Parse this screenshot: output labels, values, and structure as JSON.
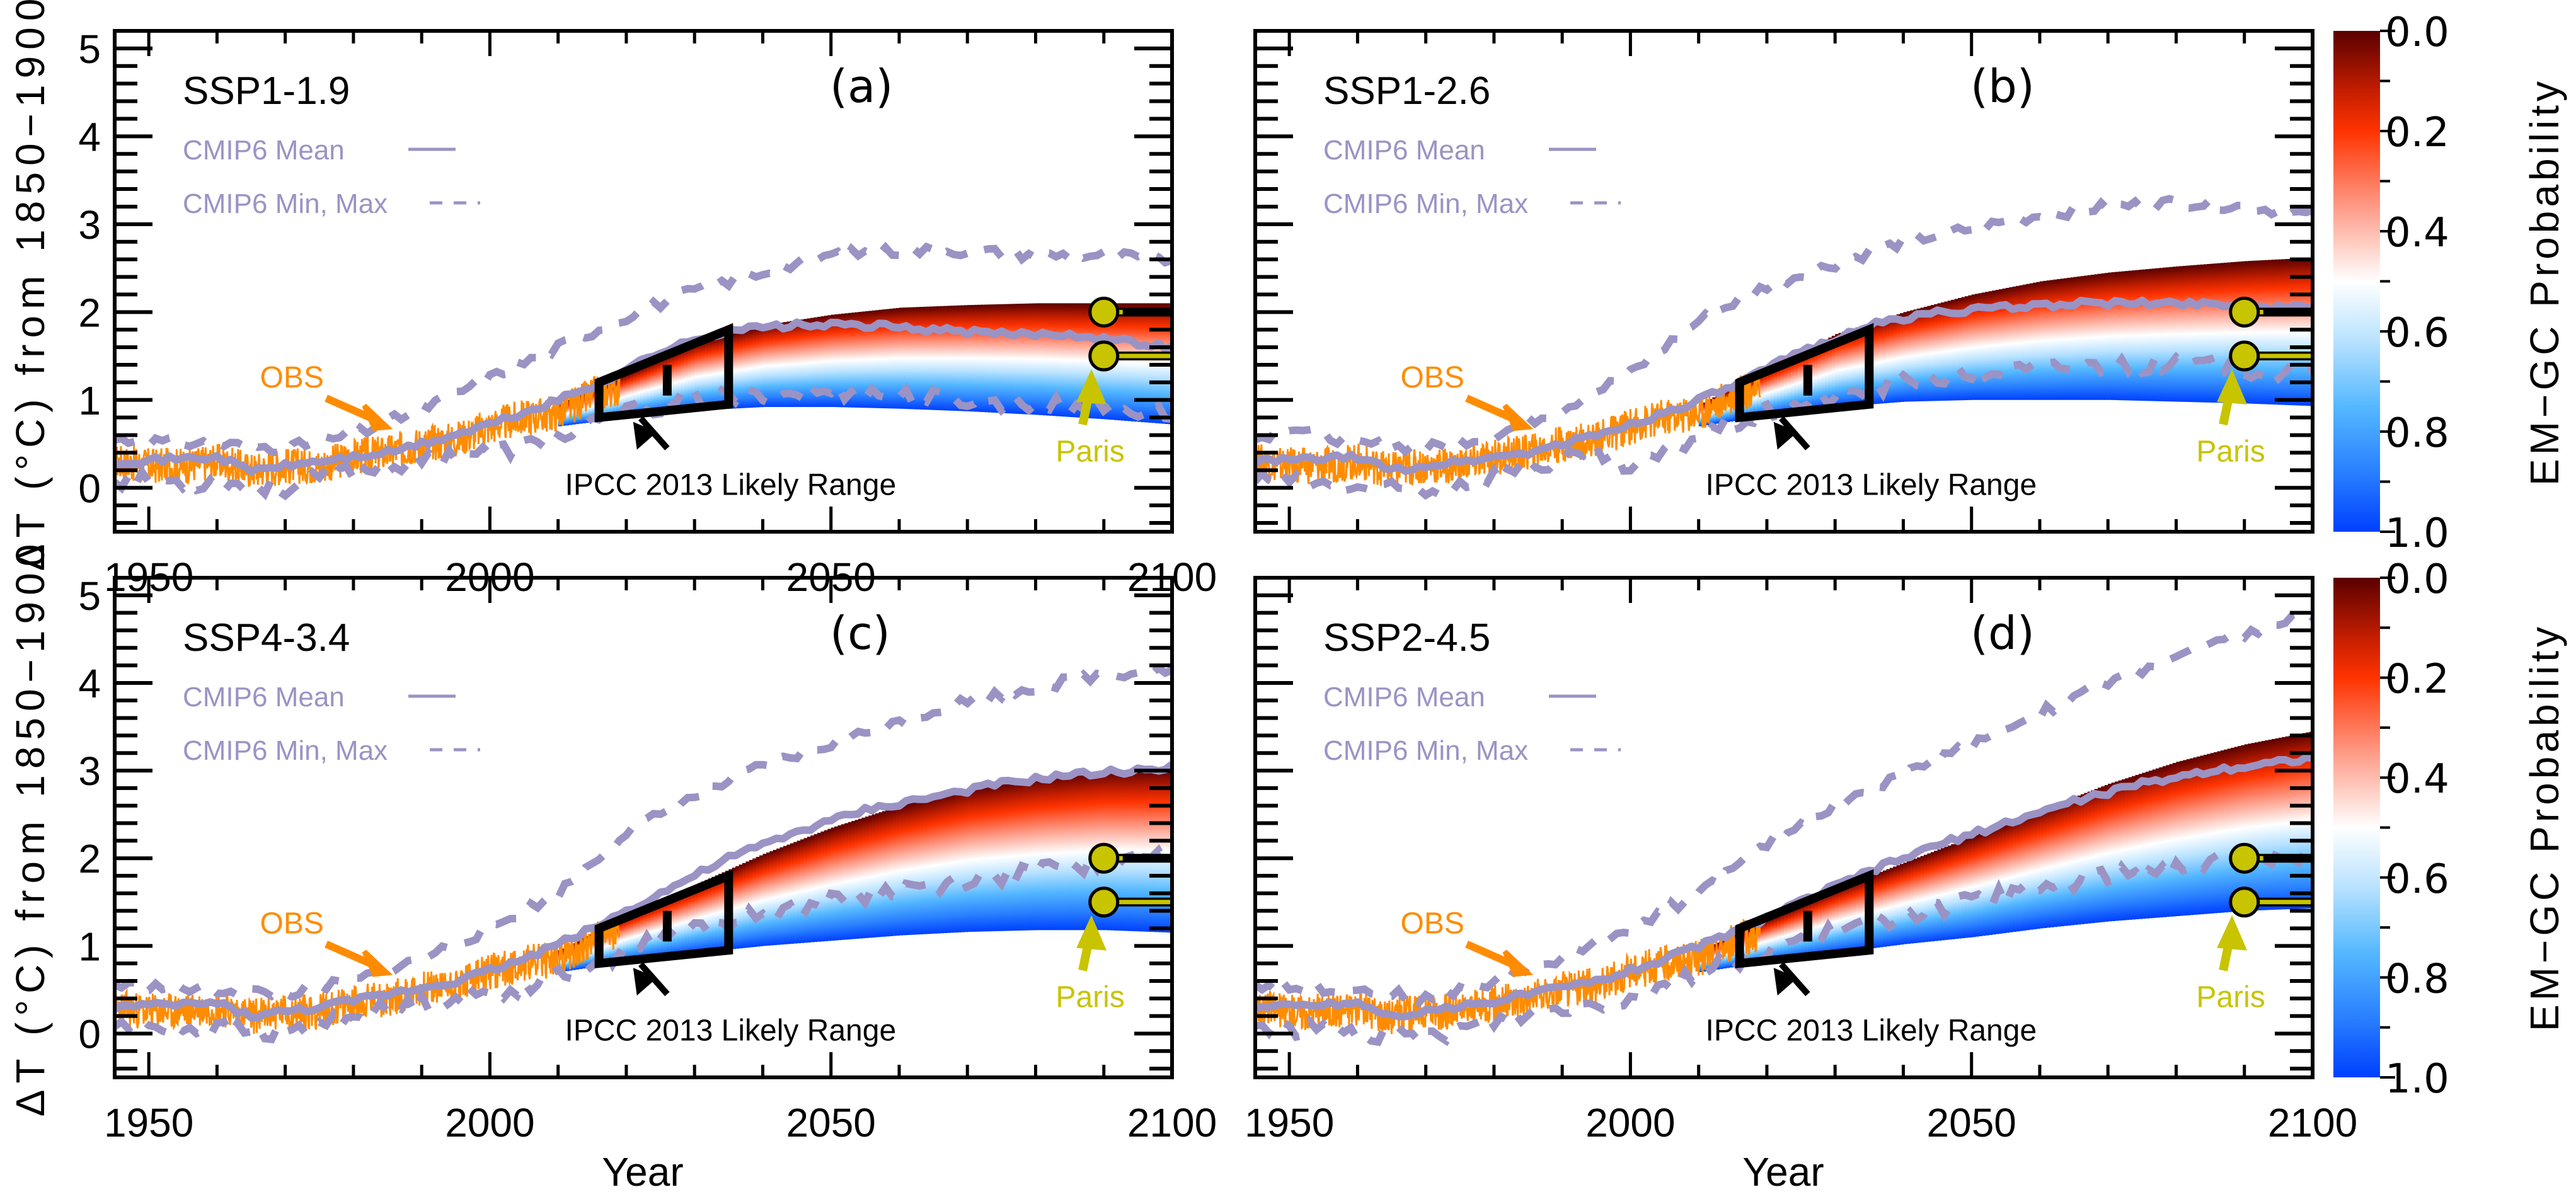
{
  "figure": {
    "y_axis_title": "ΔT (°C) from 1850−1900",
    "x_axis_title": "Year",
    "colorbar_title": "EM−GC Probability",
    "colorbar_ticks": [
      "0.0",
      "0.2",
      "0.4",
      "0.6",
      "0.8",
      "1.0"
    ]
  },
  "colors": {
    "obs": "#FF8C00",
    "cmip6": "#9B93C4",
    "paris": "#C8C400",
    "ipcc": "#000000",
    "prob_scale": [
      "#5A0000",
      "#FF3300",
      "#FFFFFF",
      "#55B8FF",
      "#0040FF"
    ]
  },
  "chart_data": [
    {
      "type": "line",
      "panel": "(a)",
      "title": "SSP1-1.9",
      "xlabel": "Year",
      "ylabel": "ΔT (°C) from 1850−1900",
      "xlim": [
        1945,
        2100
      ],
      "ylim": [
        -0.5,
        5.2
      ],
      "x_ticks": [
        1950,
        2000,
        2050,
        2100
      ],
      "y_ticks": [
        0,
        1,
        2,
        3,
        4,
        5
      ],
      "legend": [
        "CMIP6 Mean",
        "CMIP6 Min, Max"
      ],
      "annotations": [
        "OBS",
        "IPCC 2013 Likely Range",
        "Paris"
      ],
      "cmip6_mean": {
        "x": [
          1945,
          1960,
          1965,
          1975,
          1985,
          1995,
          2005,
          2015,
          2025,
          2035,
          2045,
          2055,
          2065,
          2075,
          2085,
          2095,
          2100
        ],
        "y": [
          0.3,
          0.35,
          0.2,
          0.3,
          0.4,
          0.6,
          0.85,
          1.15,
          1.55,
          1.8,
          1.85,
          1.85,
          1.8,
          1.75,
          1.75,
          1.65,
          1.6
        ]
      },
      "cmip6_max": {
        "x": [
          1945,
          1960,
          1970,
          1980,
          1990,
          2000,
          2010,
          2020,
          2030,
          2040,
          2050,
          2060,
          2070,
          2080,
          2090,
          2100
        ],
        "y": [
          0.55,
          0.5,
          0.45,
          0.6,
          0.9,
          1.25,
          1.6,
          1.95,
          2.25,
          2.45,
          2.65,
          2.7,
          2.7,
          2.65,
          2.65,
          2.6
        ]
      },
      "cmip6_min": {
        "x": [
          1945,
          1960,
          1970,
          1980,
          1990,
          1995,
          2000,
          2010,
          2020,
          2030,
          2040,
          2050,
          2060,
          2070,
          2080,
          2090,
          2100
        ],
        "y": [
          0.1,
          0.05,
          0.0,
          0.2,
          0.3,
          0.4,
          0.4,
          0.55,
          0.85,
          1.0,
          1.05,
          1.1,
          1.05,
          1.0,
          0.95,
          0.9,
          0.85
        ]
      },
      "emgc_range": {
        "x": [
          2010,
          2020,
          2030,
          2040,
          2050,
          2060,
          2070,
          2080,
          2090,
          2100
        ],
        "upper": [
          0.95,
          1.3,
          1.65,
          1.85,
          1.97,
          2.05,
          2.08,
          2.1,
          2.1,
          2.1
        ],
        "lower": [
          0.7,
          0.8,
          0.88,
          0.92,
          0.92,
          0.9,
          0.87,
          0.83,
          0.78,
          0.72
        ]
      },
      "ipcc_box": {
        "x": [
          2016,
          2035
        ],
        "left": [
          0.8,
          1.2
        ],
        "right": [
          0.95,
          1.8
        ],
        "mid_year": 2026,
        "mid_range": [
          1.05,
          1.4
        ]
      },
      "paris": {
        "year": 2090,
        "targets": [
          2.0,
          1.5
        ]
      }
    },
    {
      "type": "line",
      "panel": "(b)",
      "title": "SSP1-2.6",
      "xlabel": "",
      "ylabel": "",
      "xlim": [
        1945,
        2100
      ],
      "ylim": [
        -0.5,
        5.2
      ],
      "x_ticks": [],
      "y_ticks": [],
      "legend": [
        "CMIP6 Mean",
        "CMIP6 Min, Max"
      ],
      "annotations": [
        "OBS",
        "IPCC 2013 Likely Range",
        "Paris"
      ],
      "cmip6_mean": {
        "x": [
          1945,
          1960,
          1965,
          1975,
          1985,
          1995,
          2005,
          2015,
          2025,
          2035,
          2045,
          2055,
          2065,
          2075,
          2085,
          2095,
          2100
        ],
        "y": [
          0.3,
          0.35,
          0.2,
          0.3,
          0.4,
          0.6,
          0.85,
          1.15,
          1.55,
          1.85,
          2.0,
          2.05,
          2.1,
          2.1,
          2.1,
          2.05,
          2.05
        ]
      },
      "cmip6_max": {
        "x": [
          1945,
          1950,
          1960,
          1970,
          1980,
          1990,
          2000,
          2010,
          2020,
          2030,
          2040,
          2050,
          2060,
          2070,
          2080,
          2090,
          2100
        ],
        "y": [
          0.55,
          0.7,
          0.5,
          0.45,
          0.6,
          0.9,
          1.3,
          1.9,
          2.3,
          2.55,
          2.8,
          2.95,
          3.1,
          3.2,
          3.25,
          3.2,
          3.1
        ]
      },
      "cmip6_min": {
        "x": [
          1945,
          1960,
          1970,
          1980,
          1990,
          1995,
          2000,
          2010,
          2020,
          2030,
          2040,
          2050,
          2060,
          2070,
          2080,
          2090,
          2100
        ],
        "y": [
          0.1,
          0.0,
          -0.05,
          0.15,
          0.3,
          0.4,
          0.2,
          0.6,
          0.85,
          1.05,
          1.2,
          1.3,
          1.35,
          1.4,
          1.4,
          1.35,
          1.3
        ]
      },
      "emgc_range": {
        "x": [
          2010,
          2020,
          2030,
          2040,
          2050,
          2060,
          2070,
          2080,
          2090,
          2100
        ],
        "upper": [
          0.95,
          1.35,
          1.75,
          2.0,
          2.2,
          2.35,
          2.45,
          2.52,
          2.58,
          2.62
        ],
        "lower": [
          0.7,
          0.82,
          0.92,
          0.98,
          1.0,
          1.0,
          1.0,
          0.98,
          0.96,
          0.93
        ]
      },
      "ipcc_box": {
        "x": [
          2016,
          2035
        ],
        "left": [
          0.8,
          1.2
        ],
        "right": [
          0.95,
          1.8
        ],
        "mid_year": 2026,
        "mid_range": [
          1.05,
          1.4
        ]
      },
      "paris": {
        "year": 2090,
        "targets": [
          2.0,
          1.5
        ]
      }
    },
    {
      "type": "line",
      "panel": "(c)",
      "title": "SSP4-3.4",
      "xlabel": "Year",
      "ylabel": "ΔT (°C) from 1850−1900",
      "xlim": [
        1945,
        2100
      ],
      "ylim": [
        -0.5,
        5.2
      ],
      "x_ticks": [
        1950,
        2000,
        2050,
        2100
      ],
      "y_ticks": [
        0,
        1,
        2,
        3,
        4,
        5
      ],
      "legend": [
        "CMIP6 Mean",
        "CMIP6 Min, Max"
      ],
      "annotations": [
        "OBS",
        "IPCC 2013 Likely Range",
        "Paris"
      ],
      "cmip6_mean": {
        "x": [
          1945,
          1960,
          1965,
          1975,
          1985,
          1995,
          2005,
          2015,
          2025,
          2035,
          2045,
          2055,
          2065,
          2075,
          2085,
          2095,
          2100
        ],
        "y": [
          0.3,
          0.35,
          0.2,
          0.3,
          0.45,
          0.6,
          0.85,
          1.2,
          1.6,
          2.0,
          2.3,
          2.55,
          2.7,
          2.85,
          2.95,
          3.0,
          3.05
        ]
      },
      "cmip6_max": {
        "x": [
          1945,
          1960,
          1970,
          1980,
          1990,
          2000,
          2010,
          2020,
          2030,
          2040,
          2050,
          2060,
          2070,
          2080,
          2090,
          2100
        ],
        "y": [
          0.55,
          0.5,
          0.45,
          0.6,
          0.85,
          1.2,
          1.6,
          2.3,
          2.7,
          3.05,
          3.3,
          3.55,
          3.8,
          3.95,
          4.1,
          4.15
        ]
      },
      "cmip6_min": {
        "x": [
          1945,
          1960,
          1970,
          1980,
          1990,
          2000,
          2010,
          2020,
          2030,
          2040,
          2050,
          2060,
          2070,
          2080,
          2090,
          2100
        ],
        "y": [
          0.1,
          0.05,
          0.0,
          0.2,
          0.35,
          0.45,
          0.65,
          0.95,
          1.2,
          1.35,
          1.5,
          1.65,
          1.75,
          1.85,
          1.95,
          2.0
        ]
      },
      "emgc_range": {
        "x": [
          2010,
          2020,
          2030,
          2040,
          2050,
          2060,
          2070,
          2080,
          2090,
          2100
        ],
        "upper": [
          0.95,
          1.35,
          1.7,
          2.05,
          2.35,
          2.6,
          2.8,
          2.92,
          3.0,
          3.02
        ],
        "lower": [
          0.7,
          0.82,
          0.92,
          1.0,
          1.06,
          1.12,
          1.16,
          1.18,
          1.18,
          1.15
        ]
      },
      "ipcc_box": {
        "x": [
          2016,
          2035
        ],
        "left": [
          0.8,
          1.2
        ],
        "right": [
          0.95,
          1.8
        ],
        "mid_year": 2026,
        "mid_range": [
          1.05,
          1.4
        ]
      },
      "paris": {
        "year": 2090,
        "targets": [
          2.0,
          1.5
        ]
      }
    },
    {
      "type": "line",
      "panel": "(d)",
      "title": "SSP2-4.5",
      "xlabel": "Year",
      "ylabel": "",
      "xlim": [
        1945,
        2100
      ],
      "ylim": [
        -0.5,
        5.2
      ],
      "x_ticks": [
        1950,
        2000,
        2050,
        2100
      ],
      "y_ticks": [],
      "legend": [
        "CMIP6 Mean",
        "CMIP6 Min, Max"
      ],
      "annotations": [
        "OBS",
        "IPCC 2013 Likely Range",
        "Paris"
      ],
      "cmip6_mean": {
        "x": [
          1945,
          1960,
          1965,
          1975,
          1985,
          1995,
          2005,
          2015,
          2025,
          2035,
          2045,
          2055,
          2065,
          2075,
          2085,
          2095,
          2100
        ],
        "y": [
          0.3,
          0.35,
          0.2,
          0.3,
          0.45,
          0.6,
          0.85,
          1.15,
          1.5,
          1.85,
          2.15,
          2.4,
          2.65,
          2.85,
          3.0,
          3.1,
          3.15
        ]
      },
      "cmip6_max": {
        "x": [
          1945,
          1960,
          1970,
          1980,
          1990,
          2000,
          2010,
          2020,
          2030,
          2040,
          2050,
          2060,
          2070,
          2080,
          2090,
          2100
        ],
        "y": [
          0.55,
          0.5,
          0.4,
          0.6,
          0.85,
          1.2,
          1.6,
          2.15,
          2.6,
          2.95,
          3.3,
          3.65,
          4.0,
          4.3,
          4.55,
          4.8
        ]
      },
      "cmip6_min": {
        "x": [
          1945,
          1960,
          1970,
          1980,
          1990,
          2000,
          2010,
          2020,
          2030,
          2040,
          2050,
          2060,
          2070,
          2080,
          2090,
          2100
        ],
        "y": [
          0.1,
          0.0,
          -0.05,
          0.15,
          0.3,
          0.4,
          0.7,
          0.95,
          1.15,
          1.35,
          1.5,
          1.65,
          1.8,
          1.9,
          2.0,
          2.05
        ]
      },
      "emgc_range": {
        "x": [
          2010,
          2020,
          2030,
          2040,
          2050,
          2060,
          2070,
          2080,
          2090,
          2100
        ],
        "upper": [
          0.95,
          1.3,
          1.65,
          1.95,
          2.25,
          2.55,
          2.85,
          3.1,
          3.3,
          3.45
        ],
        "lower": [
          0.7,
          0.82,
          0.92,
          1.02,
          1.1,
          1.2,
          1.28,
          1.34,
          1.4,
          1.43
        ]
      },
      "ipcc_box": {
        "x": [
          2016,
          2035
        ],
        "left": [
          0.8,
          1.2
        ],
        "right": [
          0.95,
          1.8
        ],
        "mid_year": 2026,
        "mid_range": [
          1.05,
          1.4
        ]
      },
      "paris": {
        "year": 2090,
        "targets": [
          2.0,
          1.5
        ]
      }
    }
  ],
  "obs_series": {
    "x": [
      1945,
      1950,
      1955,
      1960,
      1965,
      1970,
      1975,
      1980,
      1985,
      1990,
      1995,
      2000,
      2005,
      2010,
      2015,
      2019
    ],
    "y": [
      0.3,
      0.25,
      0.25,
      0.3,
      0.2,
      0.25,
      0.25,
      0.35,
      0.4,
      0.5,
      0.55,
      0.7,
      0.8,
      0.85,
      1.05,
      1.15
    ]
  }
}
